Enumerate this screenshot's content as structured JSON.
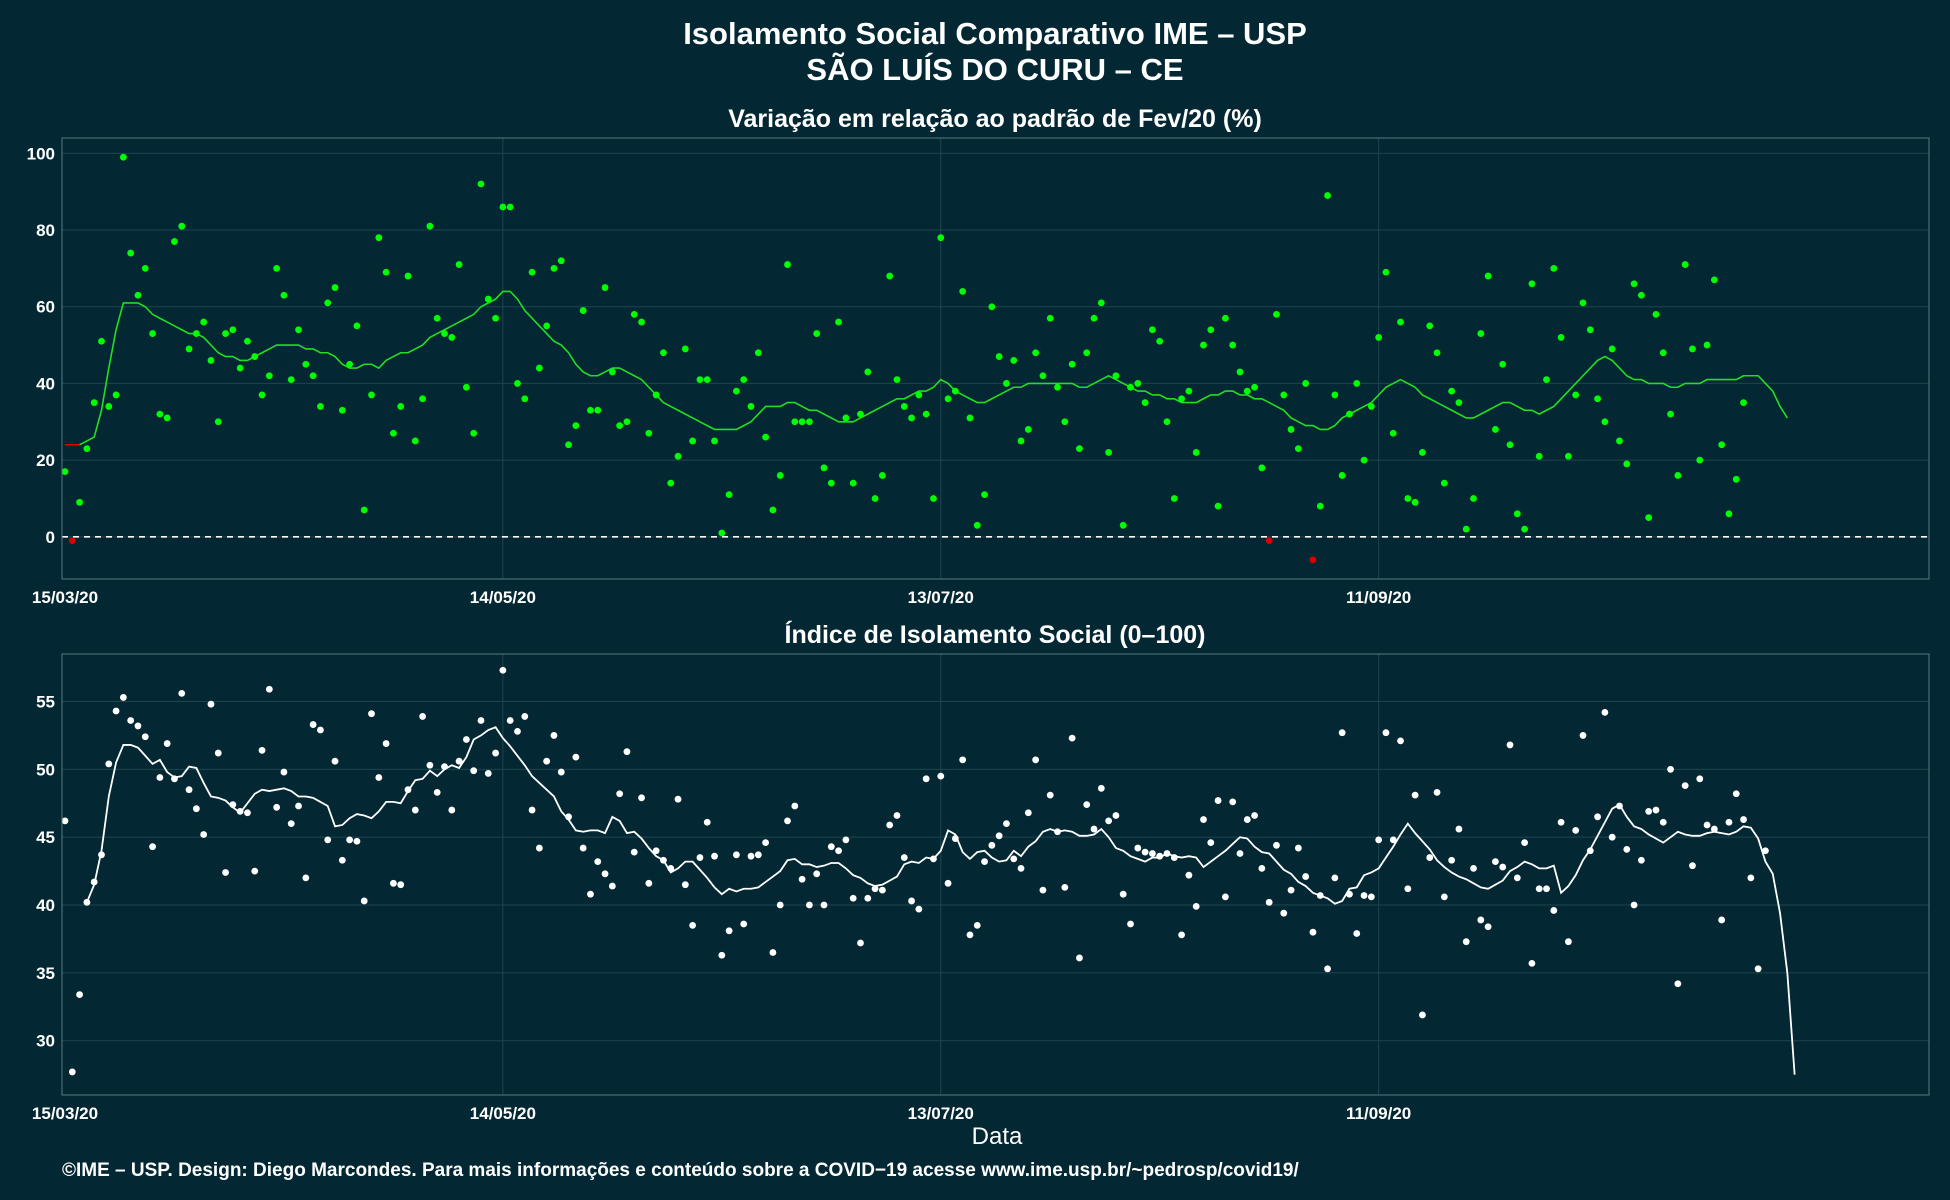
{
  "header": {
    "title_line1": "Isolamento Social Comparativo IME – USP",
    "title_line2": "SÃO LUÍS DO CURU – CE"
  },
  "footer": {
    "credit": "©IME – USP. Design: Diego Marcondes. Para mais informações e conteúdo sobre a COVID−19 acesse www.ime.usp.br/~pedrosp/covid19/"
  },
  "colors": {
    "background": "#032833",
    "panel_border": "#5a7880",
    "grid": "#1d4550",
    "top_points": "#00ff00",
    "top_line": "#22dd22",
    "negative": "#dd0000",
    "bottom_points": "#ffffff",
    "bottom_line": "#ffffff"
  },
  "chart_data": [
    {
      "type": "scatter",
      "title": "Variação em relação ao padrão de Fev/20 (%)",
      "xlabel": "",
      "ylabel": "",
      "x_start": "15/03/20",
      "x_end": "25/11/20",
      "x_ticks": [
        "15/03/20",
        "14/05/20",
        "13/07/20",
        "11/09/20"
      ],
      "y_ticks": [
        0,
        20,
        40,
        60,
        80,
        100
      ],
      "ylim": [
        -11,
        104
      ],
      "reference_line": {
        "y": 0,
        "style": "dashed"
      },
      "grid": true,
      "series": [
        {
          "kind": "daily_points",
          "color_rule": "green when value >= 0, red when value < 0",
          "values": [
            17,
            -1,
            9,
            23,
            35,
            51,
            34,
            37,
            99,
            74,
            63,
            70,
            53,
            32,
            31,
            77,
            81,
            49,
            53,
            56,
            46,
            30,
            53,
            54,
            44,
            51,
            47,
            37,
            42,
            70,
            63,
            41,
            54,
            45,
            42,
            34,
            61,
            65,
            33,
            45,
            55,
            7,
            37,
            78,
            69,
            27,
            34,
            68,
            25,
            36,
            81,
            57,
            53,
            52,
            71,
            39,
            27,
            92,
            62,
            57,
            86,
            86,
            40,
            36,
            69,
            44,
            55,
            70,
            72,
            24,
            29,
            59,
            33,
            33,
            65,
            43,
            29,
            30,
            58,
            56,
            27,
            37,
            48,
            14,
            21,
            49,
            25,
            41,
            41,
            25,
            1,
            11,
            38,
            41,
            34,
            48,
            26,
            7,
            16,
            71,
            30,
            30,
            30,
            53,
            18,
            14,
            56,
            31,
            14,
            32,
            43,
            10,
            16,
            68,
            41,
            34,
            31,
            37,
            32,
            10,
            78,
            36,
            38,
            64,
            31,
            3,
            11,
            60,
            47,
            40,
            46,
            25,
            28,
            48,
            42,
            57,
            39,
            30,
            45,
            23,
            48,
            57,
            61,
            22,
            42,
            3,
            39,
            40,
            35,
            54,
            51,
            30,
            10,
            36,
            38,
            22,
            50,
            54,
            8,
            57,
            50,
            43,
            38,
            39,
            18,
            -1,
            58,
            37,
            28,
            23,
            40,
            -6,
            8,
            89,
            37,
            16,
            32,
            40,
            20,
            34,
            52,
            69,
            27,
            56,
            10,
            9,
            22,
            55,
            48,
            14,
            38,
            35,
            2,
            10,
            53,
            68,
            28,
            45,
            24,
            6,
            2,
            66,
            21,
            41,
            70,
            52,
            21,
            37,
            61,
            54,
            36,
            30,
            49,
            25,
            19,
            66,
            63,
            5,
            58,
            48,
            32,
            16,
            71,
            49,
            20,
            50,
            67,
            24,
            6,
            15,
            35
          ]
        },
        {
          "kind": "moving_average_line",
          "color_rule": "green when value >= 0, red segment at start of period",
          "values": [
            24,
            24,
            24,
            25,
            26,
            33,
            44,
            54,
            61,
            61,
            61,
            60,
            58,
            57,
            56,
            55,
            54,
            53,
            53,
            52,
            50,
            48,
            47,
            47,
            46,
            46,
            47,
            48,
            49,
            50,
            50,
            50,
            50,
            49,
            49,
            48,
            48,
            47,
            45,
            44,
            44,
            45,
            45,
            44,
            46,
            47,
            48,
            48,
            49,
            50,
            52,
            53,
            54,
            55,
            56,
            57,
            58,
            60,
            61,
            62,
            64,
            64,
            62,
            59,
            57,
            55,
            53,
            51,
            50,
            48,
            45,
            43,
            42,
            42,
            43,
            44,
            44,
            43,
            42,
            41,
            39,
            37,
            35,
            34,
            33,
            32,
            31,
            30,
            29,
            28,
            28,
            28,
            28,
            29,
            30,
            32,
            34,
            34,
            34,
            35,
            35,
            34,
            33,
            33,
            32,
            31,
            30,
            30,
            30,
            31,
            32,
            33,
            34,
            35,
            36,
            36,
            37,
            38,
            38,
            39,
            41,
            40,
            38,
            37,
            36,
            35,
            35,
            36,
            37,
            38,
            39,
            39,
            40,
            40,
            40,
            40,
            40,
            40,
            40,
            39,
            39,
            40,
            41,
            42,
            41,
            40,
            39,
            38,
            38,
            37,
            37,
            36,
            36,
            35,
            35,
            35,
            36,
            37,
            37,
            38,
            38,
            37,
            37,
            36,
            36,
            35,
            34,
            33,
            31,
            30,
            29,
            29,
            28,
            28,
            29,
            31,
            32,
            33,
            34,
            35,
            37,
            39,
            40,
            41,
            40,
            39,
            37,
            36,
            35,
            34,
            33,
            32,
            31,
            31,
            32,
            33,
            34,
            35,
            35,
            34,
            33,
            33,
            32,
            33,
            34,
            36,
            38,
            40,
            42,
            44,
            46,
            47,
            46,
            44,
            42,
            41,
            41,
            40,
            40,
            40,
            39,
            39,
            40,
            40,
            40,
            41,
            41,
            41,
            41,
            41,
            42,
            42,
            42,
            40,
            38,
            34,
            31
          ]
        }
      ]
    },
    {
      "type": "scatter",
      "title": "Índice de Isolamento Social (0–100)",
      "xlabel": "Data",
      "ylabel": "",
      "x_start": "15/03/20",
      "x_end": "25/11/20",
      "x_ticks": [
        "15/03/20",
        "14/05/20",
        "13/07/20",
        "11/09/20"
      ],
      "y_ticks": [
        30,
        35,
        40,
        45,
        50,
        55
      ],
      "ylim": [
        26.0,
        58.5
      ],
      "grid": true,
      "series": [
        {
          "kind": "daily_points",
          "values": [
            46.2,
            27.7,
            33.4,
            40.2,
            41.7,
            43.7,
            50.4,
            54.3,
            55.3,
            53.6,
            53.2,
            52.4,
            44.3,
            49.4,
            51.9,
            49.3,
            55.6,
            48.5,
            47.1,
            45.2,
            54.8,
            51.2,
            42.4,
            47.4,
            46.9,
            46.8,
            42.5,
            51.4,
            55.9,
            47.2,
            49.8,
            46.0,
            47.3,
            42.0,
            53.3,
            52.9,
            44.8,
            50.6,
            43.3,
            44.8,
            44.7,
            40.3,
            54.1,
            49.4,
            51.9,
            41.6,
            41.5,
            48.5,
            47.0,
            53.9,
            50.3,
            48.3,
            50.2,
            47.0,
            50.6,
            52.2,
            49.9,
            53.6,
            49.7,
            51.2,
            57.3,
            53.6,
            52.8,
            53.9,
            47.0,
            44.2,
            50.6,
            52.5,
            49.8,
            46.5,
            50.9,
            44.2,
            40.8,
            43.2,
            42.3,
            41.4,
            48.2,
            51.3,
            43.9,
            47.9,
            41.6,
            44.0,
            43.3,
            42.7,
            47.8,
            41.5,
            38.5,
            43.5,
            46.1,
            43.6,
            36.3,
            38.1,
            43.7,
            38.6,
            43.6,
            43.7,
            44.6,
            36.5,
            40.0,
            46.2,
            47.3,
            41.9,
            40.0,
            42.3,
            40.0,
            44.3,
            44.0,
            44.8,
            40.5,
            37.2,
            40.5,
            41.2,
            41.1,
            45.9,
            46.6,
            43.5,
            40.3,
            39.7,
            49.3,
            43.4,
            49.5,
            41.6,
            44.9,
            50.7,
            37.8,
            38.5,
            43.2,
            44.4,
            45.1,
            46.0,
            43.4,
            42.7,
            46.8,
            50.7,
            41.1,
            48.1,
            45.4,
            41.3,
            52.3,
            36.1,
            47.4,
            45.6,
            48.6,
            46.2,
            46.6,
            40.8,
            38.6,
            44.2,
            43.9,
            43.8,
            43.6,
            43.8,
            43.5,
            37.8,
            42.2,
            39.9,
            46.3,
            44.6,
            47.7,
            40.6,
            47.6,
            43.8,
            46.3,
            46.6,
            42.7,
            40.2,
            44.4,
            39.4,
            41.1,
            44.2,
            42.1,
            38.0,
            40.7,
            35.3,
            42.0,
            52.7,
            40.8,
            37.9,
            40.7,
            40.6,
            44.8,
            52.7,
            44.8,
            52.1,
            41.2,
            48.1,
            31.9,
            43.5,
            48.3,
            40.6,
            43.3,
            45.6,
            37.3,
            42.7,
            38.9,
            38.4,
            43.2,
            42.8,
            51.8,
            42.0,
            44.6,
            35.7,
            41.2,
            41.2,
            39.6,
            46.1,
            37.3,
            45.5,
            52.5,
            44.0,
            46.5,
            54.2,
            45.0,
            47.3,
            44.1,
            40.0,
            43.3,
            46.9,
            47.0,
            46.1,
            50.0,
            34.2,
            48.8,
            42.9,
            49.3,
            45.9,
            45.6,
            38.9,
            46.1,
            48.2,
            46.3,
            42.0,
            35.3,
            44.0
          ]
        },
        {
          "kind": "moving_average_line",
          "values": [
            40.2,
            41.5,
            44.0,
            48.0,
            50.5,
            51.8,
            51.8,
            51.6,
            51.0,
            50.4,
            50.7,
            49.8,
            49.4,
            49.5,
            50.2,
            50.1,
            49.0,
            48.0,
            47.9,
            47.7,
            47.2,
            46.8,
            47.5,
            48.2,
            48.5,
            48.4,
            48.5,
            48.6,
            48.4,
            48.0,
            48.0,
            47.9,
            47.6,
            47.3,
            45.8,
            45.9,
            46.4,
            46.7,
            46.6,
            46.4,
            46.9,
            47.6,
            47.6,
            47.5,
            48.4,
            49.2,
            49.3,
            49.9,
            49.5,
            50.0,
            50.3,
            50.1,
            50.9,
            52.2,
            52.5,
            52.9,
            53.1,
            52.3,
            51.7,
            51.0,
            50.3,
            49.5,
            49.0,
            48.5,
            48.0,
            46.9,
            46.3,
            45.5,
            45.4,
            45.5,
            45.5,
            45.3,
            46.5,
            46.2,
            45.3,
            45.4,
            44.9,
            44.2,
            43.6,
            43.3,
            42.4,
            42.7,
            43.2,
            43.2,
            42.6,
            42.0,
            41.3,
            40.8,
            41.2,
            41.0,
            41.2,
            41.2,
            41.3,
            41.7,
            42.1,
            42.5,
            43.3,
            43.4,
            43.0,
            43.0,
            42.8,
            42.9,
            43.1,
            43.1,
            42.7,
            42.2,
            42.0,
            41.6,
            41.4,
            41.5,
            41.8,
            42.1,
            43.0,
            43.2,
            43.1,
            43.5,
            43.4,
            44.0,
            45.5,
            45.2,
            43.9,
            43.4,
            43.9,
            44.0,
            43.5,
            43.2,
            43.3,
            44.0,
            43.6,
            44.3,
            44.7,
            45.4,
            45.6,
            45.4,
            45.5,
            45.4,
            45.1,
            45.1,
            45.2,
            45.6,
            45.0,
            44.2,
            44.0,
            43.6,
            43.4,
            43.2,
            43.5,
            43.5,
            43.8,
            43.6,
            43.5,
            43.6,
            43.5,
            42.8,
            43.2,
            43.6,
            44.0,
            44.5,
            45.0,
            44.9,
            44.3,
            43.9,
            43.8,
            43.2,
            42.6,
            42.3,
            41.7,
            41.4,
            40.9,
            40.7,
            40.5,
            40.1,
            40.3,
            41.2,
            41.3,
            42.2,
            42.4,
            42.7,
            43.5,
            44.3,
            45.2,
            46.0,
            45.3,
            44.7,
            44.1,
            43.3,
            42.8,
            42.4,
            42.1,
            41.9,
            41.6,
            41.3,
            41.2,
            41.5,
            41.8,
            42.5,
            42.8,
            43.2,
            43.0,
            42.7,
            42.7,
            42.9,
            40.9,
            41.4,
            42.2,
            43.3,
            44.1,
            45.1,
            46.1,
            47.1,
            47.4,
            46.5,
            45.8,
            45.6,
            45.2,
            44.9,
            44.6,
            45.0,
            45.4,
            45.2,
            45.1,
            45.1,
            45.3,
            45.4,
            45.3,
            45.2,
            45.4,
            45.8,
            45.7,
            44.9,
            43.2,
            42.3,
            39.4,
            35.0,
            27.5
          ]
        }
      ]
    }
  ]
}
